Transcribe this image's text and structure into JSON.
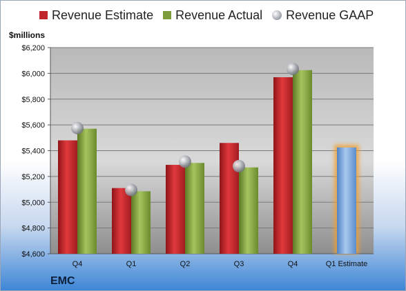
{
  "chart_data": {
    "type": "bar",
    "categories": [
      "Q4",
      "Q1",
      "Q2",
      "Q3",
      "Q4",
      "Q1 Estimate"
    ],
    "series": [
      {
        "name": "Revenue Estimate",
        "color": "#c0262b",
        "values": [
          5480,
          5110,
          5290,
          5460,
          5970,
          null
        ]
      },
      {
        "name": "Revenue Actual",
        "color": "#7d9d3b",
        "values": [
          5570,
          5085,
          5305,
          5270,
          6025,
          null
        ]
      },
      {
        "name": "Revenue GAAP",
        "color": "#b9bcc4",
        "marker": "circle",
        "values": [
          5575,
          5095,
          5315,
          5280,
          6035,
          null
        ]
      }
    ],
    "highlight": {
      "category": "Q1 Estimate",
      "value": 5425,
      "color": "#6f9fd8",
      "glow": "#f0a030"
    },
    "ylabel": "$millions",
    "ylim": [
      4600,
      6200
    ],
    "yticks": [
      4600,
      4800,
      5000,
      5200,
      5400,
      5600,
      5800,
      6000,
      6200
    ],
    "ytick_labels": [
      "$4,600",
      "$4,800",
      "$5,000",
      "$5,200",
      "$5,400",
      "$5,600",
      "$5,800",
      "$6,000",
      "$6,200"
    ],
    "grid": true,
    "legend_position": "top"
  },
  "brand": "EMC"
}
